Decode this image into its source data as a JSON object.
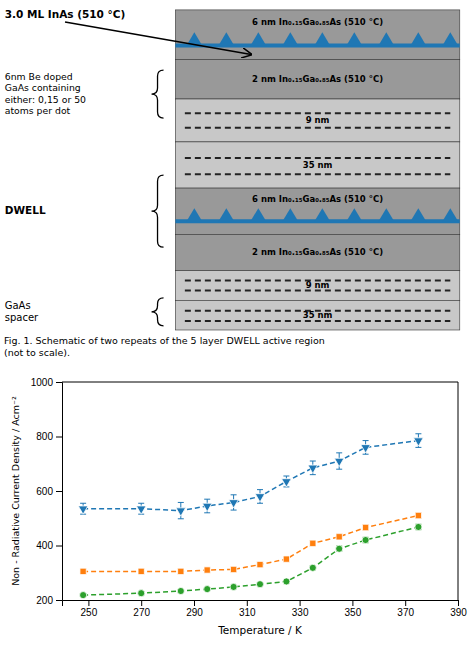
{
  "chart_data": {
    "type": "line",
    "x": [
      248,
      270,
      285,
      295,
      305,
      315,
      325,
      335,
      345,
      355,
      375
    ],
    "xlim": [
      240,
      390
    ],
    "ylim": [
      200,
      1000
    ],
    "xticks": [
      250,
      270,
      290,
      310,
      330,
      350,
      370,
      390
    ],
    "yticks": [
      200,
      400,
      600,
      800,
      1000
    ],
    "xlabel": "Temperature / K",
    "ylabel": "Non - Radiative Current Density / Acm⁻²",
    "series": [
      {
        "values": [
          535,
          535,
          528,
          545,
          558,
          580,
          635,
          685,
          710,
          760,
          785
        ],
        "errors": [
          20,
          20,
          30,
          25,
          28,
          25,
          20,
          25,
          30,
          25,
          25
        ],
        "marker": "triangle-down",
        "line_style": "dashed"
      },
      {
        "values": [
          305,
          305,
          305,
          310,
          312,
          330,
          350,
          408,
          432,
          466,
          510
        ],
        "errors": [
          8,
          8,
          8,
          8,
          8,
          8,
          8,
          10,
          10,
          10,
          10
        ],
        "marker": "square",
        "line_style": "dashed"
      },
      {
        "values": [
          218,
          225,
          233,
          240,
          248,
          258,
          268,
          318,
          388,
          420,
          468
        ],
        "errors": [
          5,
          5,
          5,
          5,
          5,
          5,
          5,
          8,
          10,
          10,
          10
        ],
        "marker": "circle",
        "line_style": "dashed"
      }
    ],
    "annotations": [
      "6 nm In₀.₁₅Ga₀.₈₅As (510 °C)",
      "2 nm In₀.₁₅Ga₀.₈₅As (510 °C)",
      "9 nm",
      "35 nm",
      "6 nm In₀.₁₅Ga₀.₈₅As (510 °C)",
      "2 nm In₀.₁₅Ga₀.₈₅As (510 °C)",
      "9 nm",
      "35 nm",
      "3.0 ML InAs (510 °C)",
      "6nm Be doped\nGaAs containing\neither: 0,15 or 50\natoms per dot",
      "DWELL",
      "GaAs\nspacer",
      "Fig. 1.  Schematic of two repeats of the 5 layer DWELL active region\n(not to scale)."
    ]
  }
}
